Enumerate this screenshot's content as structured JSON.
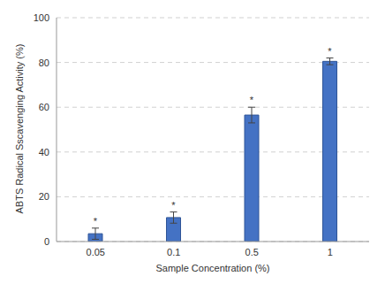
{
  "chart_data": {
    "type": "bar",
    "x_label": "Sample Concentration (%)",
    "y_label": "ABTS Radical Sscavenging Activity (%)",
    "categories": [
      "0.05",
      "0.1",
      "0.5",
      "1"
    ],
    "values": [
      3.5,
      10.7,
      56.5,
      80.5
    ],
    "errors": [
      2.5,
      2.5,
      3.5,
      1.5
    ],
    "annotations": [
      "*",
      "*",
      "*",
      "*"
    ],
    "color": "#4472c4",
    "ylim": [
      0,
      100
    ],
    "yticks": [
      0,
      20,
      40,
      60,
      80,
      100
    ],
    "grid": true
  }
}
